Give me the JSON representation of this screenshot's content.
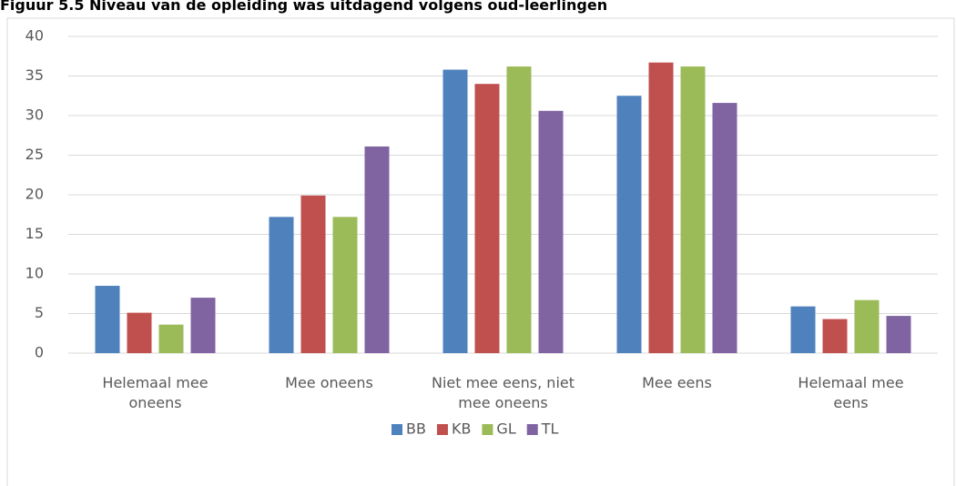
{
  "chart_data": {
    "type": "bar",
    "title": "Figuur 5.5 Niveau van de opleiding was uitdagend volgens oud-leerlingen",
    "categories": [
      "Helemaal mee\noneens",
      "Mee oneens",
      "Niet mee eens, niet\nmee oneens",
      "Mee eens",
      "Helemaal mee\neens"
    ],
    "series": [
      {
        "name": "BB",
        "color": "#4f81bd",
        "values": [
          8.5,
          17.2,
          35.8,
          32.5,
          5.9
        ]
      },
      {
        "name": "KB",
        "color": "#c0504d",
        "values": [
          5.1,
          19.9,
          34.0,
          36.7,
          4.3
        ]
      },
      {
        "name": "GL",
        "color": "#9bbb59",
        "values": [
          3.6,
          17.2,
          36.2,
          36.2,
          6.7
        ]
      },
      {
        "name": "TL",
        "color": "#8064a2",
        "values": [
          7.0,
          26.1,
          30.6,
          31.6,
          4.7
        ]
      }
    ],
    "ylim": [
      0,
      40
    ],
    "yticks": [
      0,
      5,
      10,
      15,
      20,
      25,
      30,
      35,
      40
    ],
    "grid": true,
    "legend": "bottom"
  }
}
